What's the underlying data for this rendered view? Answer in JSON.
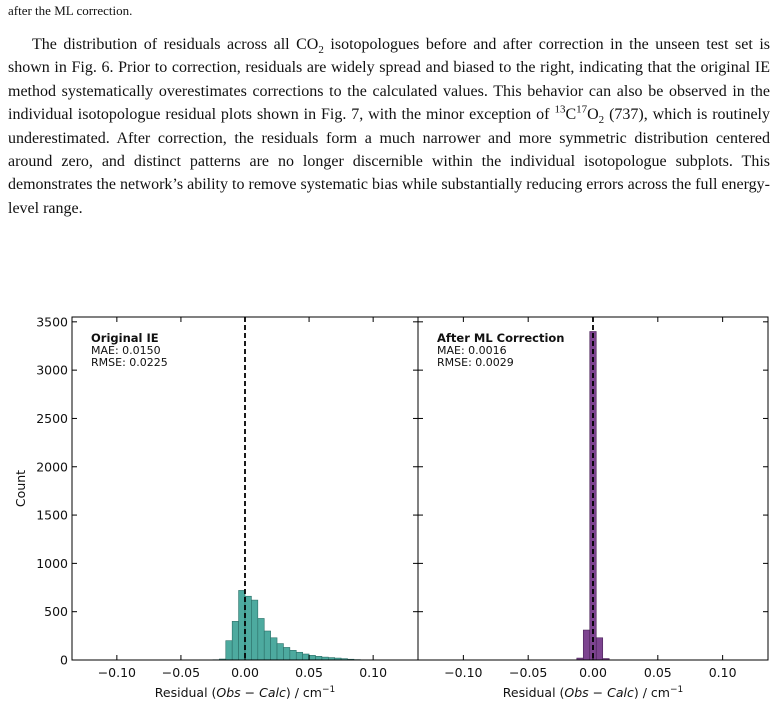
{
  "intro_fragment": "after the ML correction.",
  "paragraph": [
    {
      "text": "The distribution of residuals across all CO"
    },
    {
      "text": "2",
      "style": "sub"
    },
    {
      "text": " isotopologues before and after correction in the unseen test set is shown in Fig. 6. Prior to correction, residuals are widely spread and biased to the right, indicating that the original IE method systematically overestimates corrections to the calculated values. This behavior can also be observed in the individual isotopologue residual plots shown in Fig. 7, with the minor exception of "
    },
    {
      "text": "13",
      "style": "sup"
    },
    {
      "text": "C"
    },
    {
      "text": "17",
      "style": "sup"
    },
    {
      "text": "O"
    },
    {
      "text": "2",
      "style": "sub"
    },
    {
      "text": " (737), which is routinely underestimated. After correction, the residuals form a much narrower and more symmetric distribution centered around zero, and distinct patterns are no longer discernible within the individual isotopologue subplots. This demonstrates the network’s ability to remove systematic bias while substantially reducing errors across the full energy-level range."
    }
  ],
  "chart_data": [
    {
      "type": "histogram",
      "annotation_title": "Original IE",
      "annotation_lines": [
        "MAE: 0.0150",
        "RMSE: 0.0225"
      ],
      "ylabel": "Count",
      "xlabel": [
        {
          "text": "Residual ("
        },
        {
          "text": "Obs − Calc",
          "style": "italic"
        },
        {
          "text": ") / cm"
        },
        {
          "text": "−1",
          "style": "sup"
        }
      ],
      "bins": [
        -0.025,
        -0.02,
        -0.015,
        -0.01,
        -0.005,
        0,
        0.005,
        0.01,
        0.015,
        0.02,
        0.025,
        0.03,
        0.035,
        0.04,
        0.045,
        0.05,
        0.055,
        0.06,
        0.065,
        0.07,
        0.075,
        0.08,
        0.085,
        0.09
      ],
      "counts": [
        3,
        10,
        200,
        400,
        720,
        660,
        620,
        430,
        300,
        230,
        170,
        130,
        100,
        80,
        62,
        48,
        38,
        30,
        25,
        20,
        14,
        8,
        4
      ],
      "color": "#4daa9f",
      "edgecolor": "#2b6f67",
      "vline": 0,
      "xlim": [
        -0.135,
        0.135
      ],
      "ylim": [
        0,
        3550
      ],
      "xticks": [
        {
          "value": -0.1,
          "label": "−0.10"
        },
        {
          "value": -0.05,
          "label": "−0.05"
        },
        {
          "value": 0,
          "label": "0.00"
        },
        0.05,
        {
          "value": 0.1,
          "label": "0.10"
        }
      ],
      "yticks": [
        0,
        500,
        1000,
        1500,
        2000,
        2500,
        3000,
        3500
      ]
    },
    {
      "type": "histogram",
      "annotation_title": "After ML Correction",
      "annotation_lines": [
        "MAE: 0.0016",
        "RMSE: 0.0029"
      ],
      "xlabel": [
        {
          "text": "Residual ("
        },
        {
          "text": "Obs − Calc",
          "style": "italic"
        },
        {
          "text": ") / cm"
        },
        {
          "text": "−1",
          "style": "sup"
        }
      ],
      "bins": [
        -0.0125,
        -0.0075,
        -0.0025,
        0.0025,
        0.0075,
        0.0125
      ],
      "counts": [
        20,
        310,
        3400,
        230,
        15
      ],
      "color": "#7d4490",
      "edgecolor": "#4a2257",
      "vline": 0,
      "xlim": [
        -0.135,
        0.135
      ],
      "ylim": [
        0,
        3550
      ],
      "xticks": [
        {
          "value": -0.1,
          "label": "−0.10"
        },
        {
          "value": -0.05,
          "label": "−0.05"
        },
        {
          "value": 0,
          "label": "0.00"
        },
        0.05,
        {
          "value": 0.1,
          "label": "0.10"
        }
      ],
      "yticks": [
        0,
        500,
        1000,
        1500,
        2000,
        2500,
        3000,
        3500
      ]
    }
  ]
}
